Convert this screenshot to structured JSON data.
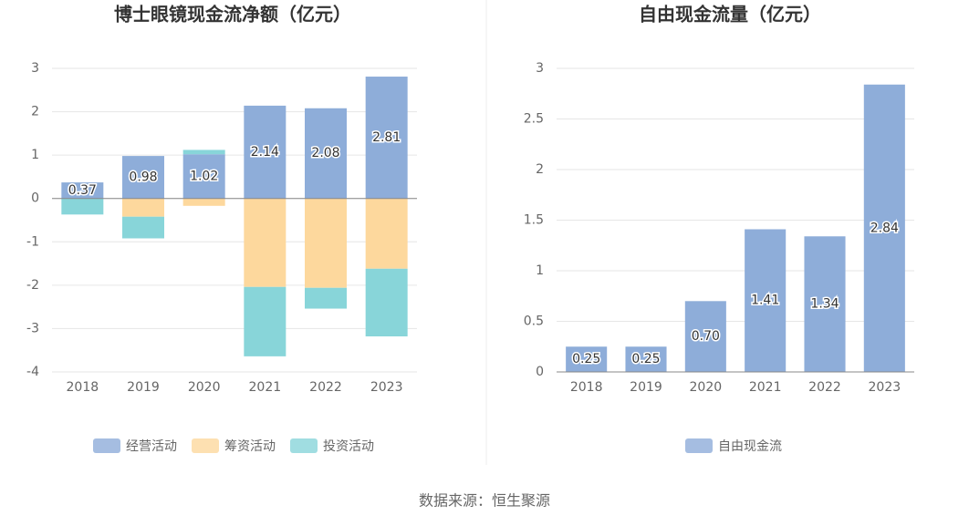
{
  "chart_data": [
    {
      "type": "bar",
      "stacked": true,
      "title": "博士眼镜现金流净额（亿元）",
      "categories": [
        "2018",
        "2019",
        "2020",
        "2021",
        "2022",
        "2023"
      ],
      "series": [
        {
          "name": "经营活动",
          "color": "#8eadd9",
          "values": [
            0.37,
            0.98,
            1.02,
            2.14,
            2.08,
            2.81
          ],
          "labels": true
        },
        {
          "name": "筹资活动",
          "color": "#fdd89d",
          "values": [
            0,
            -0.42,
            -0.17,
            -2.04,
            -2.06,
            -1.62
          ]
        },
        {
          "name": "投资活动",
          "color": "#88d5d9",
          "values": [
            -0.37,
            -0.5,
            0.1,
            -1.6,
            -0.48,
            -1.56
          ]
        }
      ],
      "ylim": [
        -4,
        3
      ],
      "yticks": [
        -4,
        -3,
        -2,
        -1,
        0,
        1,
        2,
        3
      ],
      "grid": true,
      "legend": "bottom"
    },
    {
      "type": "bar",
      "title": "自由现金流量（亿元）",
      "categories": [
        "2018",
        "2019",
        "2020",
        "2021",
        "2022",
        "2023"
      ],
      "series": [
        {
          "name": "自由现金流",
          "color": "#8eadd9",
          "values": [
            0.25,
            0.25,
            0.7,
            1.41,
            1.34,
            2.84
          ],
          "value_labels": [
            "0.25",
            "0.25",
            "0.70",
            "1.41",
            "1.34",
            "2.84"
          ],
          "labels": true
        }
      ],
      "ylim": [
        0,
        3
      ],
      "yticks": [
        0,
        0.5,
        1,
        1.5,
        2,
        2.5,
        3
      ],
      "grid": true,
      "legend": "bottom"
    }
  ],
  "source": "数据来源：恒生聚源"
}
